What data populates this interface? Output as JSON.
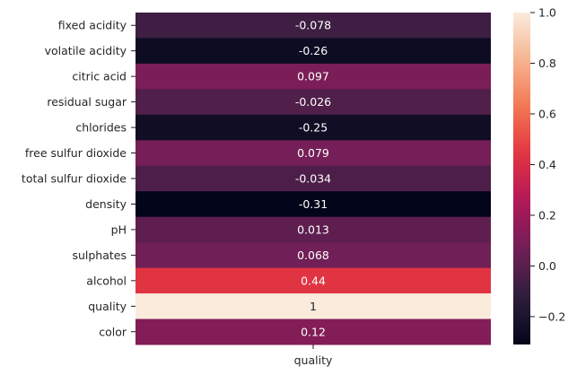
{
  "chart_data": {
    "type": "heatmap",
    "rows": [
      "fixed acidity",
      "volatile acidity",
      "citric acid",
      "residual sugar",
      "chlorides",
      "free sulfur dioxide",
      "total sulfur dioxide",
      "density",
      "pH",
      "sulphates",
      "alcohol",
      "quality",
      "color"
    ],
    "columns": [
      "quality"
    ],
    "values": [
      -0.078,
      -0.26,
      0.097,
      -0.026,
      -0.25,
      0.079,
      -0.034,
      -0.31,
      0.013,
      0.068,
      0.44,
      1,
      0.12
    ],
    "value_labels": [
      "-0.078",
      "-0.26",
      "0.097",
      "-0.026",
      "-0.25",
      "0.079",
      "-0.034",
      "-0.31",
      "0.013",
      "0.068",
      "0.44",
      "1",
      "0.12"
    ],
    "colorbar": {
      "range": [
        -0.31,
        1.0
      ],
      "ticks": [
        -0.2,
        0.0,
        0.2,
        0.4,
        0.6,
        0.8,
        1.0
      ],
      "tick_labels": [
        "−0.2",
        "0.0",
        "0.2",
        "0.4",
        "0.6",
        "0.8",
        "1.0"
      ],
      "colormap": "rocket",
      "stops": [
        "#03051A",
        "#2E1E3C",
        "#701F57",
        "#B01759",
        "#E13342",
        "#F37651",
        "#F6B48F",
        "#FAEBDD"
      ]
    },
    "title": "",
    "xlabel": "",
    "ylabel": ""
  }
}
